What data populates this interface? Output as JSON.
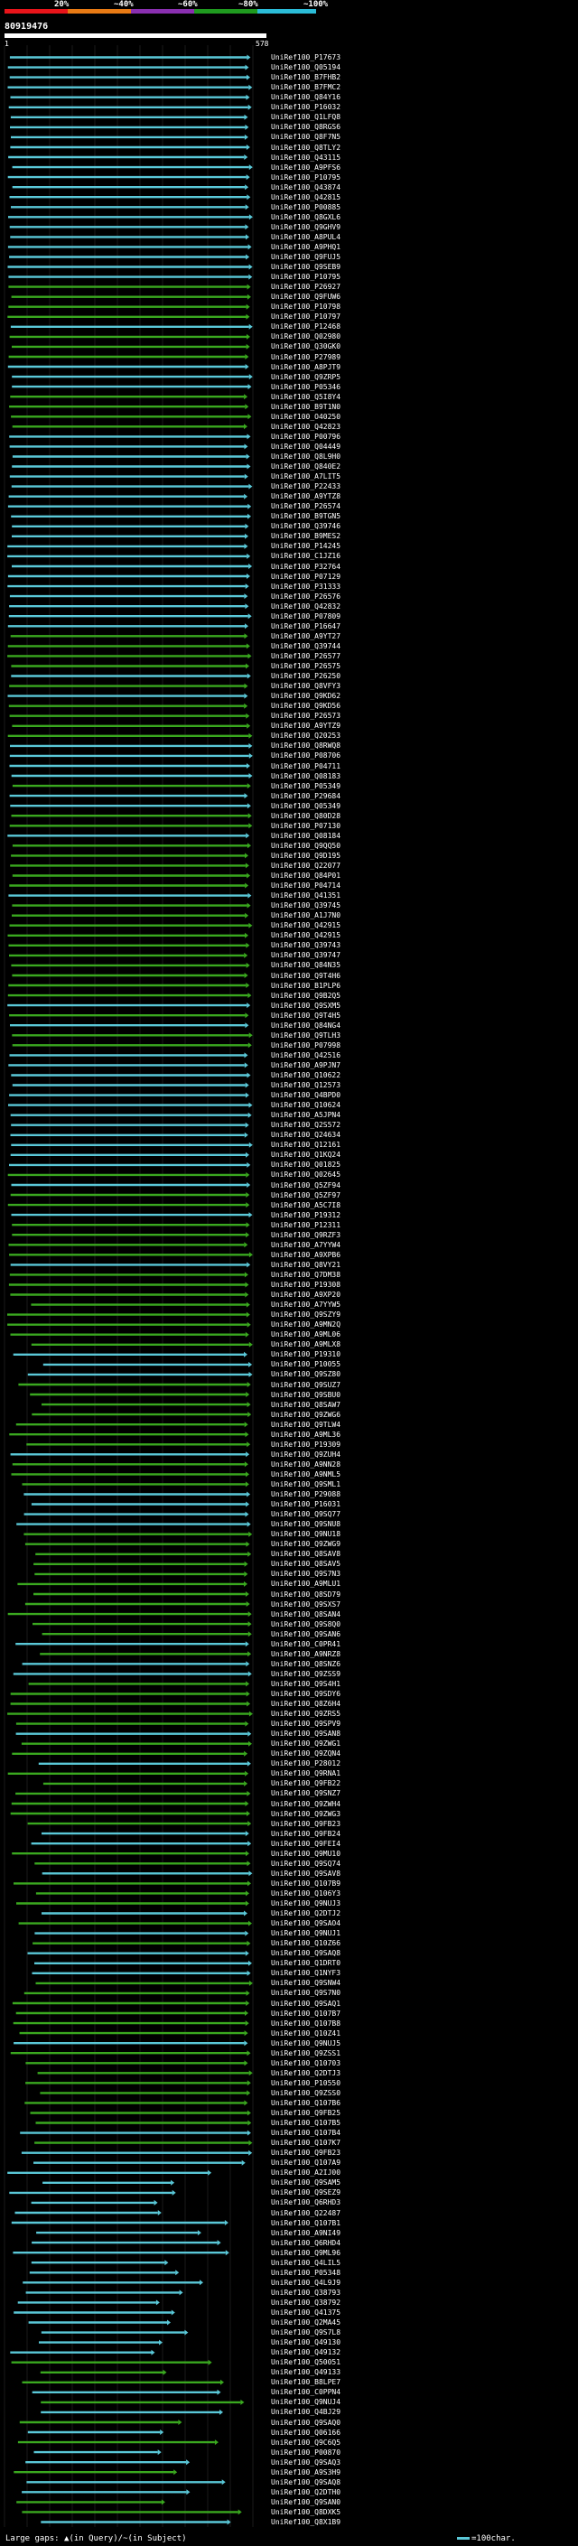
{
  "scale": {
    "labels": [
      "20%",
      "~40%",
      "~60%",
      "~80%",
      "~100%"
    ],
    "colors": [
      "#e8141a",
      "#e87a14",
      "#8a2fb0",
      "#1f9a1f",
      "#2bbcd8"
    ]
  },
  "query": {
    "id": "80919476",
    "start": "1",
    "end": "578"
  },
  "hit_colors": {
    "high": "#5ac8d8",
    "mid": "#3aa81f",
    "grid": "#1a1a1a"
  },
  "hits": [
    "UniRef100_P17673",
    "UniRef100_Q05194",
    "UniRef100_B7FHB2",
    "UniRef100_B7FMC2",
    "UniRef100_Q84Y16",
    "UniRef100_P16032",
    "UniRef100_Q1LFQ8",
    "UniRef100_Q8RGS6",
    "UniRef100_Q8F7N5",
    "UniRef100_Q8TLY2",
    "UniRef100_Q43115",
    "UniRef100_A9PFS6",
    "UniRef100_P10795",
    "UniRef100_Q43874",
    "UniRef100_Q42815",
    "UniRef100_P00885",
    "UniRef100_Q8GXL6",
    "UniRef100_Q9GHV9",
    "UniRef100_A8PUL4",
    "UniRef100_A9PHQ1",
    "UniRef100_Q9FUJ5",
    "UniRef100_Q9SEB9",
    "UniRef100_P10795",
    "UniRef100_P26927",
    "UniRef100_Q9FUW6",
    "UniRef100_P10798",
    "UniRef100_P10797",
    "UniRef100_P12468",
    "UniRef100_Q02980",
    "UniRef100_Q30GK0",
    "UniRef100_P27989",
    "UniRef100_A8PJT9",
    "UniRef100_Q9ZRP5",
    "UniRef100_P05346",
    "UniRef100_Q5I8Y4",
    "UniRef100_B9T1N0",
    "UniRef100_O40250",
    "UniRef100_Q42823",
    "UniRef100_P00796",
    "UniRef100_Q04449",
    "UniRef100_Q8L9H0",
    "UniRef100_Q840E2",
    "UniRef100_A7LIT5",
    "UniRef100_P22433",
    "UniRef100_A9YTZ8",
    "UniRef100_P26574",
    "UniRef100_B9TGN5",
    "UniRef100_Q39746",
    "UniRef100_B9MES2",
    "UniRef100_P14245",
    "UniRef100_C1JZ16",
    "UniRef100_P32764",
    "UniRef100_P07129",
    "UniRef100_P31333",
    "UniRef100_P26576",
    "UniRef100_Q42832",
    "UniRef100_P07809",
    "UniRef100_P16647",
    "UniRef100_A9YT27",
    "UniRef100_Q39744",
    "UniRef100_P26577",
    "UniRef100_P26575",
    "UniRef100_P26250",
    "UniRef100_Q8VFY3",
    "UniRef100_Q9KD62",
    "UniRef100_Q9KD56",
    "UniRef100_P26573",
    "UniRef100_A9YTZ9",
    "UniRef100_Q20253",
    "UniRef100_Q8RWQ8",
    "UniRef100_P08706",
    "UniRef100_P04711",
    "UniRef100_Q08183",
    "UniRef100_P05349",
    "UniRef100_P29684",
    "UniRef100_Q05349",
    "UniRef100_Q80D28",
    "UniRef100_P07130",
    "UniRef100_Q08184",
    "UniRef100_Q9QQ50",
    "UniRef100_Q9D195",
    "UniRef100_Q22077",
    "UniRef100_Q84P01",
    "UniRef100_P04714",
    "UniRef100_Q41351",
    "UniRef100_Q39745",
    "UniRef100_A1J7N0",
    "UniRef100_Q42915",
    "UniRef100_Q42915",
    "UniRef100_Q39743",
    "UniRef100_Q39747",
    "UniRef100_Q84N35",
    "UniRef100_Q9T4H6",
    "UniRef100_B1PLP6",
    "UniRef100_Q9B2Q5",
    "UniRef100_Q9SXM5",
    "UniRef100_Q9T4H5",
    "UniRef100_Q84NG4",
    "UniRef100_Q9TLH3",
    "UniRef100_P07998",
    "UniRef100_Q42516",
    "UniRef100_A9PJN7",
    "UniRef100_Q10622",
    "UniRef100_Q12573",
    "UniRef100_Q4BPD0",
    "UniRef100_Q10624",
    "UniRef100_A5JPN4",
    "UniRef100_Q2S572",
    "UniRef100_Q24634",
    "UniRef100_Q12161",
    "UniRef100_Q1KQ24",
    "UniRef100_Q01825",
    "UniRef100_Q02645",
    "UniRef100_Q5ZF94",
    "UniRef100_Q5ZF97",
    "UniRef100_A5C7I8",
    "UniRef100_P19312",
    "UniRef100_P12311",
    "UniRef100_Q9RZF3",
    "UniRef100_A7YYW4",
    "UniRef100_A9XPB6",
    "UniRef100_Q8VY21",
    "UniRef100_Q7DM38",
    "UniRef100_P19308",
    "UniRef100_A9XP20",
    "UniRef100_A7YYW5",
    "UniRef100_Q9SZY9",
    "UniRef100_A9MN2Q",
    "UniRef100_A9ML06",
    "UniRef100_A9MLX8",
    "UniRef100_P19310",
    "UniRef100_P10055",
    "UniRef100_Q9SZ80",
    "UniRef100_Q9SUZ7",
    "UniRef100_Q9SBU0",
    "UniRef100_Q8SAW7",
    "UniRef100_Q9ZWG6",
    "UniRef100_Q9TLW4",
    "UniRef100_A9ML36",
    "UniRef100_P19309",
    "UniRef100_Q9ZUH4",
    "UniRef100_A9NN28",
    "UniRef100_A9NML5",
    "UniRef100_Q9SML1",
    "UniRef100_P29088",
    "UniRef100_P16031",
    "UniRef100_Q9SQ77",
    "UniRef100_Q9SNU8",
    "UniRef100_Q9NU18",
    "UniRef100_Q9ZWG9",
    "UniRef100_Q8SAV8",
    "UniRef100_Q8SAV5",
    "UniRef100_Q9S7N3",
    "UniRef100_A9MLU1",
    "UniRef100_Q8SD79",
    "UniRef100_Q9SXS7",
    "UniRef100_Q8SAN4",
    "UniRef100_Q9S8Q0",
    "UniRef100_Q9SAN6",
    "UniRef100_C0PR41",
    "UniRef100_A9NRZ8",
    "UniRef100_Q8SNZ6",
    "UniRef100_Q9ZSS9",
    "UniRef100_Q9S4H1",
    "UniRef100_Q9SDY6",
    "UniRef100_Q8Z6H4",
    "UniRef100_Q9ZRS5",
    "UniRef100_Q9SPV9",
    "UniRef100_Q9SAN8",
    "UniRef100_Q9ZWG1",
    "UniRef100_Q9ZQN4",
    "UniRef100_P28012",
    "UniRef100_Q9RNA1",
    "UniRef100_Q9FB22",
    "UniRef100_Q9SNZ7",
    "UniRef100_Q9ZWH4",
    "UniRef100_Q9ZWG3",
    "UniRef100_Q9FB23",
    "UniRef100_Q9FB24",
    "UniRef100_Q9FEI4",
    "UniRef100_Q9MU10",
    "UniRef100_Q9SQ74",
    "UniRef100_Q9SAV8",
    "UniRef100_Q107B9",
    "UniRef100_Q106Y3",
    "UniRef100_Q9NUJ3",
    "UniRef100_Q2DTJ2",
    "UniRef100_Q9SAO4",
    "UniRef100_Q9NUJ1",
    "UniRef100_Q10Z66",
    "UniRef100_Q9SAQ8",
    "UniRef100_Q1DRT0",
    "UniRef100_Q1NYF3",
    "UniRef100_Q9SNW4",
    "UniRef100_Q9S7N0",
    "UniRef100_Q9SAQ1",
    "UniRef100_Q107B7",
    "UniRef100_Q107B8",
    "UniRef100_Q10Z41",
    "UniRef100_Q9NUJ5",
    "UniRef100_Q9ZSS1",
    "UniRef100_Q10703",
    "UniRef100_Q2DTJ3",
    "UniRef100_P10550",
    "UniRef100_Q9ZSS0",
    "UniRef100_Q107B6",
    "UniRef100_Q9FB25",
    "UniRef100_Q107B5",
    "UniRef100_Q107B4",
    "UniRef100_Q107K7",
    "UniRef100_Q9FB23",
    "UniRef100_Q107A9",
    "UniRef100_A2IJ00",
    "UniRef100_Q9SAM5",
    "UniRef100_Q9SEZ9",
    "UniRef100_Q6RHD3",
    "UniRef100_Q22487",
    "UniRef100_Q107B1",
    "UniRef100_A9NI49",
    "UniRef100_Q6RHD4",
    "UniRef100_Q9ML96",
    "UniRef100_Q4LIL5",
    "UniRef100_P05348",
    "UniRef100_Q4L9J9",
    "UniRef100_Q38793",
    "UniRef100_Q38792",
    "UniRef100_Q41375",
    "UniRef100_Q2MA45",
    "UniRef100_Q9S7L8",
    "UniRef100_Q49130",
    "UniRef100_Q49132",
    "UniRef100_Q50051",
    "UniRef100_Q49133",
    "UniRef100_B8LPE7",
    "UniRef100_C0PPN4",
    "UniRef100_Q9NUJ4",
    "UniRef100_Q4BJ29",
    "UniRef100_Q9SAQ0",
    "UniRef100_Q06166",
    "UniRef100_Q9C6Q5",
    "UniRef100_P00870",
    "UniRef100_Q9SAQ3",
    "UniRef100_A9S3H9",
    "UniRef100_Q9SAQ8",
    "UniRef100_Q2DTH0",
    "UniRef100_Q9SAN0",
    "UniRef100_Q8DXK5",
    "UniRef100_Q8X1B9"
  ],
  "legend": {
    "gaps_prefix": "Large gaps: ",
    "gaps_query": "▲(in Query)/",
    "gaps_subject": "~(in Subject)",
    "scale_text": "=100char."
  }
}
